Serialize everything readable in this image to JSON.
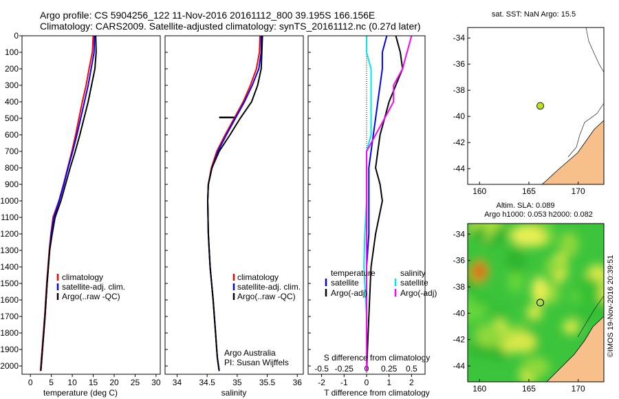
{
  "header": {
    "line1": "Argo profile: CS 5904256_122 11-Nov-2016 20161112_800 39.195S 166.156E",
    "line2": "Climatology: CARS2009. Satellite-adjusted climatology: synTS_20161112.nc (0.27d later)"
  },
  "colors": {
    "climatology": "#ff0000",
    "satellite": "#0000ff",
    "argo": "#000000",
    "salinity_satellite": "#00e5e5",
    "salinity_argo": "#ff00ff",
    "land": "#f7c08a",
    "marker": "#b4e61e"
  },
  "chart_data": [
    {
      "type": "line",
      "panel": "temperature",
      "xlabel": "temperature (deg C)",
      "ylabel": "",
      "xlim": [
        -2,
        31
      ],
      "ylim": [
        0,
        2050
      ],
      "y_inverted": true,
      "x_ticks": [
        0,
        5,
        10,
        15,
        20,
        25,
        30
      ],
      "y_ticks": [
        0,
        100,
        200,
        300,
        400,
        500,
        600,
        700,
        800,
        900,
        1000,
        1100,
        1200,
        1300,
        1400,
        1500,
        1600,
        1700,
        1800,
        1900,
        2000
      ],
      "legend": [
        "climatology",
        "satellite-adj. clim.",
        "Argo(..raw -QC)"
      ],
      "series": [
        {
          "name": "climatology",
          "x": [
            15.0,
            14.8,
            14.0,
            13.3,
            12.4,
            11.6,
            10.8,
            9.9,
            8.9,
            7.9,
            6.8,
            5.4,
            4.9,
            4.5,
            3.9,
            3.4,
            2.4
          ],
          "y": [
            0,
            100,
            200,
            300,
            400,
            500,
            600,
            700,
            800,
            900,
            1000,
            1100,
            1200,
            1300,
            1500,
            1700,
            2030
          ]
        },
        {
          "name": "satellite-adj. clim.",
          "x": [
            15.3,
            15.2,
            14.5,
            13.8,
            12.9,
            12.0,
            11.1,
            10.1,
            9.0,
            8.0,
            6.9,
            5.6,
            5.0,
            4.6,
            4.0,
            3.5,
            2.5
          ],
          "y": [
            0,
            100,
            200,
            300,
            400,
            500,
            600,
            700,
            800,
            900,
            1000,
            1100,
            1200,
            1300,
            1500,
            1700,
            2030
          ]
        },
        {
          "name": "Argo(..raw -QC)",
          "x": [
            15.6,
            15.7,
            15.4,
            14.6,
            13.8,
            12.8,
            11.8,
            10.7,
            9.5,
            8.4,
            7.3,
            5.9,
            5.2,
            4.6,
            4.0,
            3.5,
            2.5
          ],
          "y": [
            0,
            100,
            200,
            300,
            400,
            500,
            600,
            700,
            800,
            900,
            1000,
            1100,
            1200,
            1300,
            1500,
            1700,
            2030
          ]
        }
      ]
    },
    {
      "type": "line",
      "panel": "salinity",
      "xlabel": "salinity",
      "ylabel": "",
      "xlim": [
        33.8,
        36.1
      ],
      "ylim": [
        0,
        2050
      ],
      "y_inverted": true,
      "x_ticks": [
        34,
        34.5,
        35,
        35.5,
        36
      ],
      "legend": [
        "climatology",
        "satellite-adj. clim.",
        "Argo(..raw -QC)"
      ],
      "annotations": [
        "Argo Australia",
        "PI: Susan Wijffels"
      ],
      "series": [
        {
          "name": "climatology",
          "x": [
            35.38,
            35.37,
            35.32,
            35.22,
            35.1,
            34.95,
            34.8,
            34.66,
            34.57,
            34.52,
            34.51,
            34.52,
            34.55,
            34.6,
            34.64,
            34.67,
            34.7
          ],
          "y": [
            0,
            100,
            200,
            300,
            400,
            500,
            600,
            700,
            800,
            900,
            1000,
            1200,
            1400,
            1600,
            1800,
            1950,
            2030
          ]
        },
        {
          "name": "satellite-adj. clim.",
          "x": [
            35.4,
            35.4,
            35.36,
            35.25,
            35.12,
            34.97,
            34.82,
            34.68,
            34.58,
            34.52,
            34.51,
            34.52,
            34.55,
            34.6,
            34.64,
            34.67,
            34.7
          ],
          "y": [
            0,
            100,
            200,
            300,
            400,
            500,
            600,
            700,
            800,
            900,
            1000,
            1200,
            1400,
            1600,
            1800,
            1950,
            2030
          ]
        },
        {
          "name": "Argo(..raw -QC)",
          "x": [
            35.42,
            35.41,
            35.4,
            35.34,
            35.24,
            35.05,
            34.88,
            34.7,
            34.58,
            34.52,
            34.51,
            34.52,
            34.55,
            34.6,
            34.64,
            34.67,
            34.7
          ],
          "y": [
            0,
            100,
            200,
            300,
            400,
            500,
            600,
            700,
            800,
            900,
            1000,
            1200,
            1400,
            1600,
            1800,
            1950,
            2030
          ]
        }
      ],
      "marker_segment": {
        "x": [
          34.7,
          34.95
        ],
        "y": 495
      }
    },
    {
      "type": "line",
      "panel": "difference",
      "xlabel_top": "S difference from climatology",
      "xlabel": "T difference from climatology",
      "t_xlim": [
        -2.6,
        2.6
      ],
      "t_ticks": [
        -2,
        -1,
        0,
        1,
        2
      ],
      "s_ticks": [
        -0.5,
        -0.25,
        0,
        0.25,
        0.5
      ],
      "ylim": [
        0,
        2050
      ],
      "y_inverted": true,
      "legend_temperature": [
        "temperature",
        "satellite",
        "Argo(-adj)"
      ],
      "legend_salinity": [
        "salinity",
        "satellite",
        "Argo(-adj)"
      ],
      "series": [
        {
          "name": "temperature satellite",
          "x": [
            0.9,
            0.7,
            0.7,
            0.6,
            0.5,
            0.4,
            0.3,
            0.2,
            0.1,
            0.1,
            0.1,
            0.1,
            0.0,
            0.0,
            0.0
          ],
          "y": [
            0,
            100,
            200,
            300,
            400,
            500,
            600,
            700,
            800,
            900,
            1000,
            1200,
            1400,
            1700,
            2030
          ]
        },
        {
          "name": "temperature Argo(-adj)",
          "x": [
            1.3,
            1.5,
            1.6,
            1.3,
            1.0,
            0.8,
            0.6,
            0.5,
            0.4,
            0.6,
            0.7,
            0.4,
            0.2,
            0.1,
            0.0
          ],
          "y": [
            0,
            100,
            200,
            300,
            400,
            500,
            600,
            700,
            800,
            900,
            1000,
            1200,
            1400,
            1700,
            2030
          ]
        },
        {
          "name": "salinity satellite",
          "x": [
            0.0,
            0.0,
            0.05,
            0.05,
            0.05,
            0.05,
            0.05,
            0.0,
            0.0,
            0.0,
            0.0,
            -0.02,
            -0.03,
            0.0,
            0.0
          ],
          "y": [
            0,
            100,
            200,
            300,
            400,
            500,
            600,
            700,
            800,
            900,
            1000,
            1200,
            1400,
            1700,
            2030
          ]
        },
        {
          "name": "salinity Argo(-adj)",
          "x": [
            0.5,
            0.45,
            0.4,
            0.3,
            0.3,
            0.2,
            0.1,
            0.0,
            0.0,
            0.0,
            0.0,
            0.0,
            0.0,
            0.0,
            0.0
          ],
          "y": [
            0,
            100,
            200,
            300,
            400,
            500,
            600,
            700,
            800,
            900,
            1000,
            1200,
            1400,
            1700,
            2030
          ]
        }
      ]
    },
    {
      "type": "map",
      "panel": "sst",
      "title": "sat. SST: NaN Argo: 15.5",
      "x_ticks": [
        160,
        165,
        170
      ],
      "y_ticks": [
        -34,
        -36,
        -38,
        -40,
        -42,
        -44
      ],
      "xlim": [
        158.8,
        172.6
      ],
      "ylim": [
        -45.2,
        -33.2
      ],
      "float_position": [
        166.156,
        -39.195
      ]
    },
    {
      "type": "heatmap",
      "panel": "altimetry",
      "title": "Altim. SLA: 0.089",
      "subtitle": "Argo h1000: 0.053 h2000: 0.082",
      "x_ticks": [
        160,
        165,
        170
      ],
      "y_ticks": [
        -34,
        -36,
        -38,
        -40,
        -42,
        -44
      ],
      "xlim": [
        158.8,
        172.6
      ],
      "ylim": [
        -45.2,
        -33.2
      ],
      "float_position": [
        166.156,
        -39.195
      ]
    }
  ],
  "footer": {
    "timestamp": "©IMOS 19-Nov-2016 20:39:51"
  }
}
